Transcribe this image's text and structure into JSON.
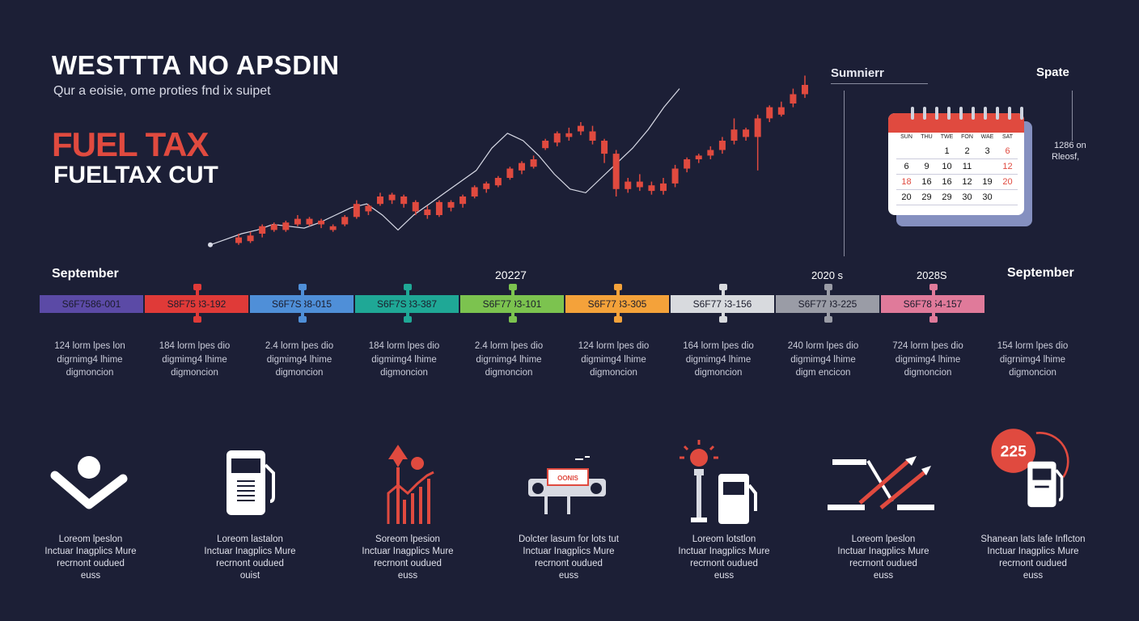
{
  "header": {
    "title": "WESTTTA NO APSDIN",
    "subtitle": "Qur a eoisie, ome proties fnd ix suipet",
    "headline_red": "FUEL TAX",
    "headline_white": "FUELTAX CUT"
  },
  "top_labels": {
    "summer": "Sumnierr",
    "spate": "Spate",
    "side_note_1": "1286 on",
    "side_note_2": "Rleosf,"
  },
  "calendar": {
    "days": [
      "SUN",
      "THU",
      "TWE",
      "FON",
      "WAE",
      "SAT"
    ],
    "rows": [
      [
        "",
        "",
        "1",
        "2",
        "3",
        "6"
      ],
      [
        "6",
        "9",
        "10",
        "11",
        "",
        "12"
      ],
      [
        "18",
        "16",
        "16",
        "12",
        "19",
        "20"
      ],
      [
        "20",
        "29",
        "29",
        "30",
        "30",
        ""
      ]
    ],
    "red_cells": [
      "0-5",
      "1-5",
      "2-0",
      "2-5"
    ]
  },
  "timeline": {
    "left_label": "September",
    "mid_label": "20227",
    "label_2020": "2020 s",
    "label_2028": "2028S",
    "right_label": "September",
    "segments": [
      {
        "text": "S6F7586-001",
        "color": "#5b4aa6"
      },
      {
        "text": "S8F7583-192",
        "color": "#e03a38"
      },
      {
        "text": "S6F7S88-015",
        "color": "#4f8fd8"
      },
      {
        "text": "S6F7S83-387",
        "color": "#1fa896"
      },
      {
        "text": "S6F7793-101",
        "color": "#7cc34f"
      },
      {
        "text": "S6F7783-305",
        "color": "#f4a23a"
      },
      {
        "text": "S6F7753-156",
        "color": "#d8dade"
      },
      {
        "text": "S6F7793-225",
        "color": "#9a9ca6"
      },
      {
        "text": "S6F7854-157",
        "color": "#e07a9a"
      }
    ],
    "descriptions": [
      [
        "124 lorm lpes lon",
        "digrnimg4 lhime",
        "digmoncion"
      ],
      [
        "184 lorm lpes dio",
        "digmimg4 lhime",
        "digmoncion"
      ],
      [
        "2.4 lorm lpes dio",
        "digmimg4 lhime",
        "digmoncion"
      ],
      [
        "184 lorm lpes dio",
        "digmimg4 lhime",
        "digmoncion"
      ],
      [
        "2.4 lorm lpes dio",
        "digrnimg4 lhime",
        "digmoncion"
      ],
      [
        "124 lorm lpes dio",
        "digmimg4 lhime",
        "digmoncion"
      ],
      [
        "164 lorm lpes dio",
        "digmimg4 lhime",
        "digmoncion"
      ],
      [
        "240 lorm lpes dio",
        "digmimg4 lhime",
        "digm encicon"
      ],
      [
        "724 lorm lpes dio",
        "digmimg4 lhime",
        "digmoncion"
      ],
      [
        "154 lorm lpes dio",
        "digrnimg4 lhime",
        "digmoncion"
      ]
    ]
  },
  "icons": [
    {
      "name": "person-checkmark-icon",
      "caption": [
        "Loreom lpeslon",
        "Inctuar Inagplics Mure",
        "recrnont oudued",
        "euss"
      ]
    },
    {
      "name": "fuel-pump-icon",
      "caption": [
        "Loreom lastalon",
        "Inctuar Inagplics Mure",
        "recrnont oudued",
        "ouist"
      ]
    },
    {
      "name": "growth-chart-icon",
      "caption": [
        "Soreom lpesion",
        "Inctuar Inagplics Mure",
        "recrnont oudued",
        "euss"
      ]
    },
    {
      "name": "truck-sign-icon",
      "caption": [
        "Dolcter lasum for lots tut",
        "Inctuar Inagplics Mure",
        "recrnont oudued",
        "euss"
      ]
    },
    {
      "name": "lightbulb-pump-icon",
      "caption": [
        "Loreom lotstlon",
        "Inctuar Inagplics Mure",
        "recrnont oudued",
        "euss"
      ]
    },
    {
      "name": "arrows-icon",
      "caption": [
        "Loreom lpeslon",
        "Inctuar Inagplics Mure",
        "recrnont oudued",
        "euss"
      ]
    },
    {
      "name": "pump-badge-icon",
      "caption": [
        "Shanean lats lafe Inflcton",
        "Inctuar Inagplics Mure",
        "recrnont oudued",
        "euss"
      ]
    }
  ],
  "badge_value": "225",
  "truck_sign": "OONIS",
  "chart_data": {
    "type": "candlestick",
    "candles": [
      [
        48,
        45,
        50,
        44
      ],
      [
        46,
        49,
        51,
        45
      ],
      [
        50,
        54,
        55,
        48
      ],
      [
        55,
        52,
        56,
        51
      ],
      [
        52,
        56,
        57,
        51
      ],
      [
        55,
        58,
        60,
        54
      ],
      [
        58,
        55,
        59,
        54
      ],
      [
        57,
        55,
        58,
        53
      ],
      [
        54,
        52,
        55,
        51
      ],
      [
        55,
        59,
        60,
        54
      ],
      [
        59,
        66,
        68,
        58
      ],
      [
        62,
        65,
        66,
        60
      ],
      [
        66,
        70,
        72,
        65
      ],
      [
        71,
        68,
        72,
        66
      ],
      [
        70,
        66,
        71,
        64
      ],
      [
        67,
        62,
        68,
        60
      ],
      [
        63,
        60,
        65,
        58
      ],
      [
        60,
        67,
        68,
        59
      ],
      [
        67,
        64,
        68,
        62
      ],
      [
        66,
        70,
        71,
        64
      ],
      [
        70,
        75,
        76,
        69
      ],
      [
        74,
        77,
        78,
        72
      ],
      [
        76,
        80,
        81,
        75
      ],
      [
        80,
        85,
        86,
        79
      ],
      [
        88,
        84,
        89,
        82
      ],
      [
        86,
        90,
        92,
        85
      ],
      [
        96,
        100,
        101,
        95
      ],
      [
        99,
        104,
        105,
        97
      ],
      [
        104,
        102,
        107,
        100
      ],
      [
        108,
        105,
        110,
        103
      ],
      [
        105,
        100,
        108,
        98
      ],
      [
        100,
        93,
        101,
        88
      ],
      [
        93,
        74,
        95,
        70
      ],
      [
        74,
        78,
        80,
        72
      ],
      [
        78,
        75,
        82,
        73
      ],
      [
        76,
        73,
        78,
        71
      ],
      [
        73,
        77,
        80,
        71
      ],
      [
        77,
        85,
        87,
        75
      ],
      [
        85,
        90,
        91,
        83
      ],
      [
        90,
        92,
        93,
        88
      ],
      [
        92,
        95,
        97,
        90
      ],
      [
        95,
        100,
        102,
        93
      ],
      [
        100,
        106,
        112,
        98
      ],
      [
        106,
        102,
        107,
        100
      ],
      [
        102,
        112,
        114,
        84
      ],
      [
        112,
        118,
        119,
        110
      ],
      [
        118,
        114,
        121,
        113
      ],
      [
        120,
        125,
        128,
        118
      ],
      [
        125,
        130,
        135,
        123
      ]
    ],
    "line": [
      44,
      47,
      50,
      52,
      55,
      54,
      53,
      56,
      60,
      64,
      66,
      60,
      52,
      60,
      66,
      72,
      78,
      84,
      96,
      104,
      100,
      92,
      82,
      74,
      72,
      80,
      88,
      96,
      106,
      118,
      128
    ]
  }
}
